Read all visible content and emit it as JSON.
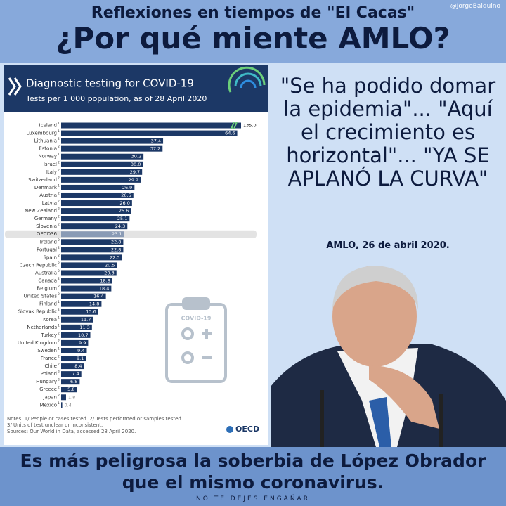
{
  "header": {
    "kicker": "Reflexiones en tiempos de \"El Cacas\"",
    "title": "¿Por qué miente AMLO?",
    "handle": "@JorgeBalduino"
  },
  "quote": {
    "text": "\"Se ha podido domar la epidemia\"... \"Aquí el crecimiento es horizontal\"... \"YA SE APLANÓ LA CURVA\"",
    "attribution": "AMLO, 26 de abril 2020."
  },
  "footer": {
    "tagline": "Es más peligrosa la soberbia de López Obrador que el mismo coronavirus.",
    "slogan": "NO TE DEJES ENGAÑAR"
  },
  "chart_data": {
    "type": "bar",
    "orientation": "horizontal",
    "title": "Diagnostic testing for COVID-19",
    "subtitle": "Tests per 1 000 population, as of 28 April 2020",
    "categories": [
      "Iceland",
      "Luxembourg",
      "Lithuania",
      "Estonia",
      "Norway",
      "Israel",
      "Italy",
      "Switzerland",
      "Denmark",
      "Austria",
      "Latvia",
      "New Zealand",
      "Germany",
      "Slovenia",
      "OECD36",
      "Ireland",
      "Portugal",
      "Spain",
      "Czech Republic",
      "Australia",
      "Canada",
      "Belgium",
      "United States",
      "Finland",
      "Slovak Republic",
      "Korea",
      "Netherlands",
      "Turkey",
      "United Kingdom",
      "Sweden",
      "France",
      "Chile",
      "Poland",
      "Hungary",
      "Greece",
      "Japan",
      "Mexico"
    ],
    "category_notes": [
      "1",
      "1",
      "2",
      "2",
      "1",
      "2",
      "2",
      "2",
      "1",
      "2",
      "2",
      "2",
      "2",
      "2",
      null,
      "2",
      "2",
      "2",
      "2",
      "2",
      "2",
      "2",
      "2",
      "1",
      "2",
      "1",
      "1",
      "2",
      "2",
      "1",
      "2",
      "2",
      "2",
      "2",
      "2",
      "2",
      "1"
    ],
    "values": [
      135.0,
      64.6,
      37.4,
      37.2,
      30.2,
      30.0,
      29.7,
      29.2,
      26.9,
      26.5,
      26.0,
      25.6,
      25.1,
      24.3,
      23.1,
      22.8,
      22.8,
      22.3,
      20.5,
      20.3,
      18.8,
      18.4,
      16.4,
      14.8,
      13.6,
      11.7,
      11.3,
      10.7,
      9.9,
      9.4,
      9.1,
      8.4,
      7.4,
      6.8,
      5.8,
      1.8,
      0.4
    ],
    "value_labels": [
      "135.0",
      "64.6",
      "37.4",
      "37.2",
      "30.2",
      "30.0",
      "29.7",
      "29.2",
      "26.9",
      "26.5",
      "26.0",
      "25.6",
      "25.1",
      "24.3",
      "23.1",
      "22.8",
      "22.8",
      "22.3",
      "20.5",
      "20.3",
      "18.8",
      "18.4",
      "16.4",
      "14.8",
      "13.6",
      "11.7",
      "11.3",
      "10.7",
      "9.9",
      "9.4",
      "9.1",
      "8.4",
      "7.4",
      "6.8",
      "5.8",
      "1.8",
      "0.4"
    ],
    "highlight": "OECD36",
    "color": "#1c3866",
    "highlight_color": "#e3e3e3",
    "xlim": [
      0,
      66
    ],
    "axis_break": true,
    "icon_label": "COVID-19",
    "notes": [
      "Notes: 1/ People or cases tested. 2/ Tests performed or samples tested.",
      "3/ Units of test unclear or inconsistent."
    ],
    "source": "Sources: Our World in Data, accessed 28 April 2020.",
    "logo": "OECD"
  }
}
